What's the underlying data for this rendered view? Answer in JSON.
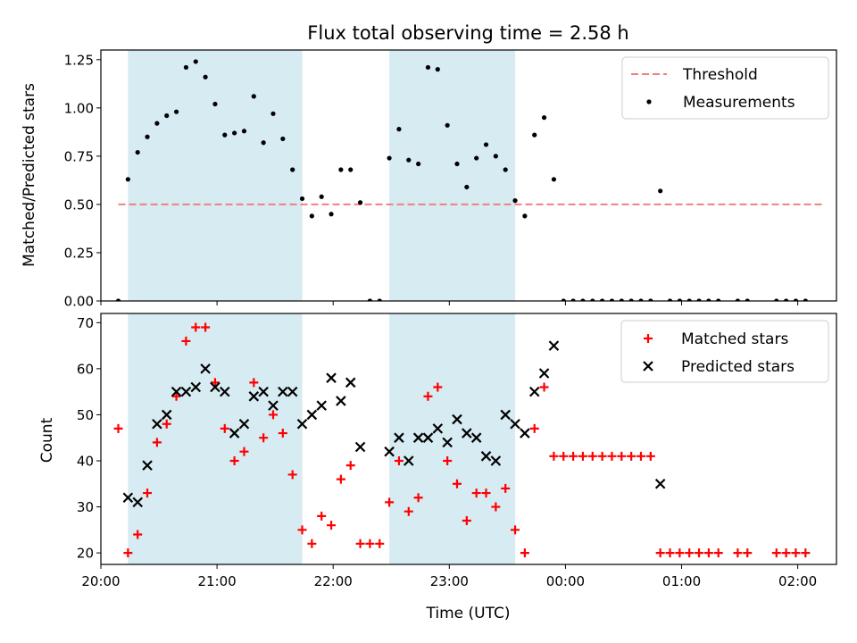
{
  "chart_data": [
    {
      "type": "scatter",
      "title": "Flux total observing time = 2.58 h",
      "xlabel": "",
      "ylabel": "Matched/Predicted stars",
      "ylim": [
        0,
        1.3
      ],
      "xlim": [
        "20:00",
        "02:20"
      ],
      "yticks": [
        "0.00",
        "0.25",
        "0.50",
        "0.75",
        "1.00",
        "1.25"
      ],
      "yticks_values": [
        0,
        0.25,
        0.5,
        0.75,
        1.0,
        1.25
      ],
      "legend_position": "top-right",
      "shaded_intervals": [
        [
          "20:14",
          "21:44"
        ],
        [
          "22:29",
          "23:34"
        ]
      ],
      "threshold": {
        "name": "Threshold",
        "value": 0.5,
        "x_start": "20:09",
        "x_end": "02:13",
        "color": "#f08080"
      },
      "series": [
        {
          "name": "Measurements",
          "color": "#000000",
          "points": [
            [
              "20:09",
              0.0
            ],
            [
              "20:14",
              0.63
            ],
            [
              "20:19",
              0.77
            ],
            [
              "20:24",
              0.85
            ],
            [
              "20:29",
              0.92
            ],
            [
              "20:34",
              0.96
            ],
            [
              "20:39",
              0.98
            ],
            [
              "20:44",
              1.21
            ],
            [
              "20:49",
              1.24
            ],
            [
              "20:54",
              1.16
            ],
            [
              "20:59",
              1.02
            ],
            [
              "21:04",
              0.86
            ],
            [
              "21:09",
              0.87
            ],
            [
              "21:14",
              0.88
            ],
            [
              "21:19",
              1.06
            ],
            [
              "21:24",
              0.82
            ],
            [
              "21:29",
              0.97
            ],
            [
              "21:34",
              0.84
            ],
            [
              "21:39",
              0.68
            ],
            [
              "21:44",
              0.53
            ],
            [
              "21:49",
              0.44
            ],
            [
              "21:54",
              0.54
            ],
            [
              "21:59",
              0.45
            ],
            [
              "22:04",
              0.68
            ],
            [
              "22:09",
              0.68
            ],
            [
              "22:14",
              0.51
            ],
            [
              "22:19",
              0.0
            ],
            [
              "22:24",
              0.0
            ],
            [
              "22:29",
              0.74
            ],
            [
              "22:34",
              0.89
            ],
            [
              "22:39",
              0.73
            ],
            [
              "22:44",
              0.71
            ],
            [
              "22:49",
              1.21
            ],
            [
              "22:54",
              1.2
            ],
            [
              "22:59",
              0.91
            ],
            [
              "23:04",
              0.71
            ],
            [
              "23:09",
              0.59
            ],
            [
              "23:14",
              0.74
            ],
            [
              "23:19",
              0.81
            ],
            [
              "23:24",
              0.75
            ],
            [
              "23:29",
              0.68
            ],
            [
              "23:34",
              0.52
            ],
            [
              "23:39",
              0.44
            ],
            [
              "23:44",
              0.86
            ],
            [
              "23:49",
              0.95
            ],
            [
              "23:54",
              0.63
            ],
            [
              "23:59",
              0.0
            ],
            [
              "00:04",
              0.0
            ],
            [
              "00:09",
              0.0
            ],
            [
              "00:14",
              0.0
            ],
            [
              "00:19",
              0.0
            ],
            [
              "00:24",
              0.0
            ],
            [
              "00:29",
              0.0
            ],
            [
              "00:34",
              0.0
            ],
            [
              "00:39",
              0.0
            ],
            [
              "00:44",
              0.0
            ],
            [
              "00:49",
              0.57
            ],
            [
              "00:54",
              0.0
            ],
            [
              "00:59",
              0.0
            ],
            [
              "01:04",
              0.0
            ],
            [
              "01:09",
              0.0
            ],
            [
              "01:14",
              0.0
            ],
            [
              "01:19",
              0.0
            ],
            [
              "01:29",
              0.0
            ],
            [
              "01:34",
              0.0
            ],
            [
              "01:49",
              0.0
            ],
            [
              "01:54",
              0.0
            ],
            [
              "01:59",
              0.0
            ],
            [
              "02:04",
              0.0
            ]
          ]
        }
      ]
    },
    {
      "type": "scatter",
      "title": "",
      "xlabel": "Time (UTC)",
      "ylabel": "Count",
      "ylim": [
        17.5,
        72
      ],
      "xlim": [
        "20:00",
        "02:20"
      ],
      "xticks": [
        "20:00",
        "21:00",
        "22:00",
        "23:00",
        "00:00",
        "01:00",
        "02:00"
      ],
      "yticks": [
        "20",
        "30",
        "40",
        "50",
        "60",
        "70"
      ],
      "yticks_values": [
        20,
        30,
        40,
        50,
        60,
        70
      ],
      "legend_position": "top-right",
      "shaded_intervals": [
        [
          "20:14",
          "21:44"
        ],
        [
          "22:29",
          "23:34"
        ]
      ],
      "series": [
        {
          "name": "Matched stars",
          "marker": "plus",
          "color": "#ff0000",
          "points": [
            [
              "20:09",
              47
            ],
            [
              "20:14",
              20
            ],
            [
              "20:19",
              24
            ],
            [
              "20:24",
              33
            ],
            [
              "20:29",
              44
            ],
            [
              "20:34",
              48
            ],
            [
              "20:39",
              54
            ],
            [
              "20:44",
              66
            ],
            [
              "20:49",
              69
            ],
            [
              "20:54",
              69
            ],
            [
              "20:59",
              57
            ],
            [
              "21:04",
              47
            ],
            [
              "21:09",
              40
            ],
            [
              "21:14",
              42
            ],
            [
              "21:19",
              57
            ],
            [
              "21:24",
              45
            ],
            [
              "21:29",
              50
            ],
            [
              "21:34",
              46
            ],
            [
              "21:39",
              37
            ],
            [
              "21:44",
              25
            ],
            [
              "21:49",
              22
            ],
            [
              "21:54",
              28
            ],
            [
              "21:59",
              26
            ],
            [
              "22:04",
              36
            ],
            [
              "22:09",
              39
            ],
            [
              "22:14",
              22
            ],
            [
              "22:19",
              22
            ],
            [
              "22:24",
              22
            ],
            [
              "22:29",
              31
            ],
            [
              "22:34",
              40
            ],
            [
              "22:39",
              29
            ],
            [
              "22:44",
              32
            ],
            [
              "22:49",
              54
            ],
            [
              "22:54",
              56
            ],
            [
              "22:59",
              40
            ],
            [
              "23:04",
              35
            ],
            [
              "23:09",
              27
            ],
            [
              "23:14",
              33
            ],
            [
              "23:19",
              33
            ],
            [
              "23:24",
              30
            ],
            [
              "23:29",
              34
            ],
            [
              "23:34",
              25
            ],
            [
              "23:39",
              20
            ],
            [
              "23:44",
              47
            ],
            [
              "23:49",
              56
            ],
            [
              "23:54",
              41
            ],
            [
              "23:59",
              41
            ],
            [
              "00:04",
              41
            ],
            [
              "00:09",
              41
            ],
            [
              "00:14",
              41
            ],
            [
              "00:19",
              41
            ],
            [
              "00:24",
              41
            ],
            [
              "00:29",
              41
            ],
            [
              "00:34",
              41
            ],
            [
              "00:39",
              41
            ],
            [
              "00:44",
              41
            ],
            [
              "00:49",
              20
            ],
            [
              "00:54",
              20
            ],
            [
              "00:59",
              20
            ],
            [
              "01:04",
              20
            ],
            [
              "01:09",
              20
            ],
            [
              "01:14",
              20
            ],
            [
              "01:19",
              20
            ],
            [
              "01:29",
              20
            ],
            [
              "01:34",
              20
            ],
            [
              "01:49",
              20
            ],
            [
              "01:54",
              20
            ],
            [
              "01:59",
              20
            ],
            [
              "02:04",
              20
            ]
          ]
        },
        {
          "name": "Predicted stars",
          "marker": "x",
          "color": "#000000",
          "points": [
            [
              "20:14",
              32
            ],
            [
              "20:19",
              31
            ],
            [
              "20:24",
              39
            ],
            [
              "20:29",
              48
            ],
            [
              "20:34",
              50
            ],
            [
              "20:39",
              55
            ],
            [
              "20:44",
              55
            ],
            [
              "20:49",
              56
            ],
            [
              "20:54",
              60
            ],
            [
              "20:59",
              56
            ],
            [
              "21:04",
              55
            ],
            [
              "21:09",
              46
            ],
            [
              "21:14",
              48
            ],
            [
              "21:19",
              54
            ],
            [
              "21:24",
              55
            ],
            [
              "21:29",
              52
            ],
            [
              "21:34",
              55
            ],
            [
              "21:39",
              55
            ],
            [
              "21:44",
              48
            ],
            [
              "21:49",
              50
            ],
            [
              "21:54",
              52
            ],
            [
              "21:59",
              58
            ],
            [
              "22:04",
              53
            ],
            [
              "22:09",
              57
            ],
            [
              "22:14",
              43
            ],
            [
              "22:29",
              42
            ],
            [
              "22:34",
              45
            ],
            [
              "22:39",
              40
            ],
            [
              "22:44",
              45
            ],
            [
              "22:49",
              45
            ],
            [
              "22:54",
              47
            ],
            [
              "22:59",
              44
            ],
            [
              "23:04",
              49
            ],
            [
              "23:09",
              46
            ],
            [
              "23:14",
              45
            ],
            [
              "23:19",
              41
            ],
            [
              "23:24",
              40
            ],
            [
              "23:29",
              50
            ],
            [
              "23:34",
              48
            ],
            [
              "23:39",
              46
            ],
            [
              "23:44",
              55
            ],
            [
              "23:49",
              59
            ],
            [
              "23:54",
              65
            ],
            [
              "00:49",
              35
            ]
          ]
        }
      ]
    }
  ]
}
